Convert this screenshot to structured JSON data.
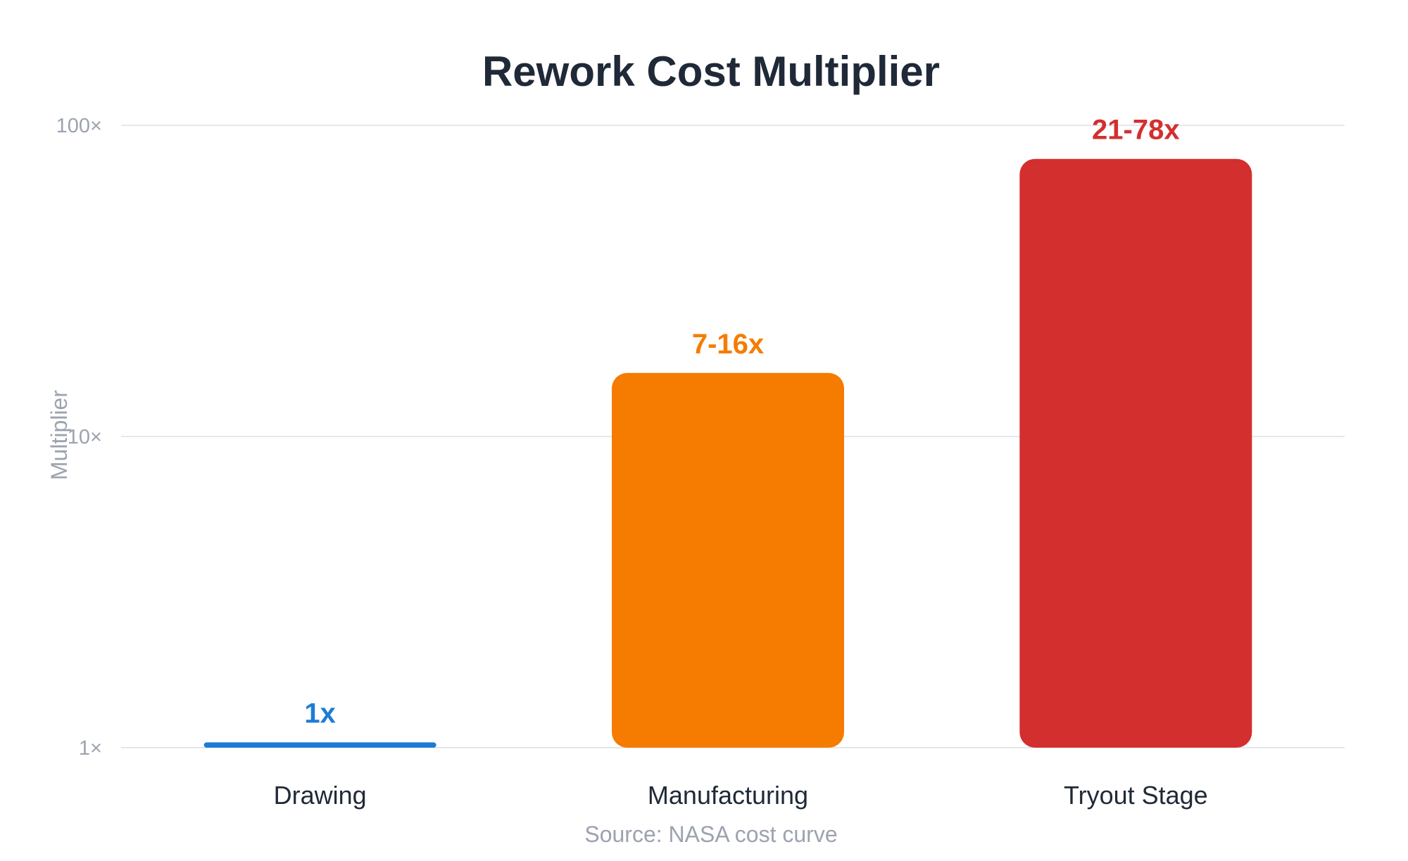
{
  "chart_data": {
    "type": "bar",
    "title": "Rework Cost Multiplier",
    "ylabel": "Multiplier",
    "xlabel": "",
    "yscale": "log",
    "ylim": [
      1,
      100
    ],
    "yticks": [
      {
        "value": 1,
        "label": "1×"
      },
      {
        "value": 10,
        "label": "10×"
      },
      {
        "value": 100,
        "label": "100×"
      }
    ],
    "grid": true,
    "categories": [
      "Drawing",
      "Manufacturing",
      "Tryout Stage"
    ],
    "values": [
      1.04,
      16,
      78
    ],
    "data_labels": [
      "1x",
      "7-16x",
      "21-78x"
    ],
    "colors": [
      "#1e7bd6",
      "#f57c00",
      "#d32f2f"
    ],
    "source": "Source: NASA cost curve"
  }
}
